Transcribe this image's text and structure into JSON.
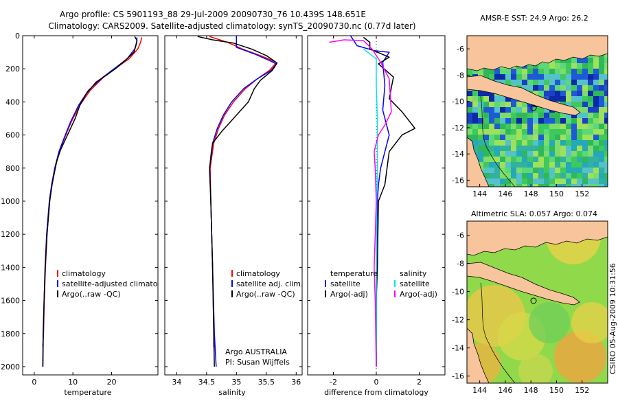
{
  "header": {
    "title_line1": "Argo profile: CS 5901193_88 29-Jul-2009 20090730_76 10.439S 148.651E",
    "title_line2": "Climatology: CARS2009. Satellite-adjusted climatology: synTS_20090730.nc (0.77d later)"
  },
  "colors": {
    "climatology": "#ff0000",
    "satellite": "#0000ff",
    "argo": "#000000",
    "sat_salinity": "#00e5ee",
    "argo_salinity_adj": "#ff00ff",
    "land": "#f7c49b"
  },
  "chart_data": [
    {
      "type": "line",
      "id": "temperature",
      "xlabel": "temperature",
      "ylabel": "",
      "xlim": [
        -3,
        32
      ],
      "ylim": [
        2050,
        0
      ],
      "xticks": [
        0,
        10,
        20
      ],
      "yticks": [
        0,
        200,
        400,
        600,
        800,
        1000,
        1200,
        1400,
        1600,
        1800,
        2000
      ],
      "legend": [
        "climatology",
        "satellite-adjusted climatology",
        "Argo(..raw -QC)"
      ],
      "series": [
        {
          "name": "climatology",
          "color": "#ff0000",
          "points": [
            [
              27.8,
              10
            ],
            [
              27.5,
              40
            ],
            [
              26.8,
              80
            ],
            [
              24.5,
              140
            ],
            [
              21.5,
              190
            ],
            [
              18.0,
              250
            ],
            [
              14.5,
              330
            ],
            [
              11.8,
              420
            ],
            [
              9.6,
              520
            ],
            [
              7.8,
              620
            ],
            [
              6.5,
              700
            ],
            [
              5.4,
              800
            ],
            [
              4.6,
              900
            ],
            [
              4.0,
              1000
            ],
            [
              3.3,
              1200
            ],
            [
              2.9,
              1400
            ],
            [
              2.6,
              1600
            ],
            [
              2.4,
              1800
            ],
            [
              2.2,
              1880
            ]
          ]
        },
        {
          "name": "satellite",
          "color": "#0000ff",
          "points": [
            [
              26.6,
              10
            ],
            [
              26.5,
              40
            ],
            [
              26.0,
              80
            ],
            [
              24.0,
              140
            ],
            [
              21.2,
              190
            ],
            [
              17.8,
              250
            ],
            [
              14.0,
              330
            ],
            [
              11.5,
              420
            ],
            [
              9.4,
              520
            ],
            [
              7.7,
              620
            ],
            [
              6.4,
              700
            ],
            [
              5.3,
              800
            ],
            [
              4.5,
              900
            ],
            [
              3.9,
              1000
            ],
            [
              3.2,
              1200
            ],
            [
              2.8,
              1400
            ],
            [
              2.55,
              1600
            ],
            [
              2.35,
              1800
            ],
            [
              2.25,
              2000
            ]
          ]
        },
        {
          "name": "Argo(..raw -QC)",
          "color": "#000000",
          "points": [
            [
              26.0,
              5
            ],
            [
              26.6,
              30
            ],
            [
              26.3,
              60
            ],
            [
              25.8,
              100
            ],
            [
              23.5,
              150
            ],
            [
              21.0,
              200
            ],
            [
              18.6,
              240
            ],
            [
              16.0,
              280
            ],
            [
              13.5,
              350
            ],
            [
              11.8,
              420
            ],
            [
              10.6,
              500
            ],
            [
              9.4,
              560
            ],
            [
              8.0,
              630
            ],
            [
              6.8,
              690
            ],
            [
              5.8,
              760
            ],
            [
              4.6,
              900
            ],
            [
              4.0,
              1000
            ],
            [
              3.3,
              1200
            ],
            [
              2.85,
              1400
            ],
            [
              2.55,
              1600
            ],
            [
              2.3,
              1800
            ],
            [
              2.2,
              2000
            ]
          ]
        }
      ]
    },
    {
      "type": "line",
      "id": "salinity",
      "xlabel": "salinity",
      "xlim": [
        33.8,
        36.1
      ],
      "ylim": [
        2050,
        0
      ],
      "xticks": [
        34,
        34.5,
        35,
        35.5,
        36
      ],
      "legend": [
        "climatology",
        "satellite adj. clim.",
        "Argo(..raw -QC)"
      ],
      "annotation": [
        "Argo AUSTRALIA",
        "PI: Susan Wijffels"
      ],
      "series": [
        {
          "name": "climatology",
          "color": "#ff0000",
          "points": [
            [
              34.55,
              5
            ],
            [
              34.85,
              40
            ],
            [
              35.1,
              80
            ],
            [
              35.4,
              120
            ],
            [
              35.6,
              150
            ],
            [
              35.65,
              170
            ],
            [
              35.55,
              210
            ],
            [
              35.35,
              260
            ],
            [
              35.15,
              320
            ],
            [
              34.95,
              400
            ],
            [
              34.8,
              480
            ],
            [
              34.7,
              560
            ],
            [
              34.62,
              650
            ],
            [
              34.58,
              750
            ],
            [
              34.56,
              800
            ],
            [
              34.57,
              1000
            ],
            [
              34.6,
              1400
            ],
            [
              34.62,
              1800
            ],
            [
              34.62,
              1880
            ]
          ]
        },
        {
          "name": "satellite",
          "color": "#0000ff",
          "points": [
            [
              35.0,
              5
            ],
            [
              35.0,
              70
            ],
            [
              35.3,
              110
            ],
            [
              35.55,
              150
            ],
            [
              35.67,
              170
            ],
            [
              35.58,
              210
            ],
            [
              35.35,
              260
            ],
            [
              35.12,
              320
            ],
            [
              34.92,
              400
            ],
            [
              34.78,
              480
            ],
            [
              34.68,
              560
            ],
            [
              34.6,
              650
            ],
            [
              34.57,
              750
            ],
            [
              34.55,
              800
            ],
            [
              34.57,
              1000
            ],
            [
              34.6,
              1400
            ],
            [
              34.63,
              1800
            ],
            [
              34.66,
              2000
            ]
          ]
        },
        {
          "name": "Argo(..raw -QC)",
          "color": "#000000",
          "points": [
            [
              34.35,
              5
            ],
            [
              34.6,
              25
            ],
            [
              34.95,
              45
            ],
            [
              35.25,
              80
            ],
            [
              35.5,
              120
            ],
            [
              35.68,
              165
            ],
            [
              35.6,
              210
            ],
            [
              35.4,
              270
            ],
            [
              35.3,
              320
            ],
            [
              35.2,
              400
            ],
            [
              35.0,
              480
            ],
            [
              34.85,
              540
            ],
            [
              34.75,
              580
            ],
            [
              34.6,
              650
            ],
            [
              34.58,
              700
            ],
            [
              34.55,
              800
            ],
            [
              34.57,
              1000
            ],
            [
              34.6,
              1400
            ],
            [
              34.62,
              1800
            ],
            [
              34.63,
              2000
            ]
          ]
        }
      ]
    },
    {
      "type": "line",
      "id": "difference",
      "xlabel": "difference from climatology",
      "xlim": [
        -3.2,
        3.2
      ],
      "ylim": [
        2050,
        0
      ],
      "xticks": [
        -2,
        0,
        2
      ],
      "legend_left_title": "temperature",
      "legend_left": [
        "satellite",
        "Argo(-adj)"
      ],
      "legend_right_title": "salinity",
      "legend_right": [
        "satellite",
        "Argo(-adj)"
      ],
      "series": [
        {
          "name": "temperature satellite",
          "color": "#0000ff",
          "points": [
            [
              -1.2,
              0
            ],
            [
              -0.9,
              60
            ],
            [
              -0.1,
              90
            ],
            [
              0.6,
              100
            ],
            [
              0.3,
              160
            ],
            [
              0.4,
              300
            ],
            [
              0.3,
              450
            ],
            [
              0.6,
              600
            ],
            [
              0.2,
              800
            ],
            [
              0.1,
              900
            ],
            [
              0.05,
              1000
            ],
            [
              0.0,
              1400
            ],
            [
              0.0,
              1600
            ],
            [
              0.0,
              2000
            ]
          ]
        },
        {
          "name": "temperature Argo(-adj)",
          "color": "#000000",
          "points": [
            [
              -0.6,
              10
            ],
            [
              -0.3,
              40
            ],
            [
              -0.3,
              80
            ],
            [
              0.6,
              130
            ],
            [
              0.1,
              170
            ],
            [
              0.8,
              250
            ],
            [
              0.6,
              380
            ],
            [
              1.2,
              460
            ],
            [
              1.8,
              560
            ],
            [
              1.2,
              600
            ],
            [
              0.6,
              700
            ],
            [
              0.4,
              900
            ],
            [
              0.1,
              1000
            ],
            [
              0.05,
              1400
            ],
            [
              0.0,
              1600
            ],
            [
              0.0,
              2000
            ]
          ]
        },
        {
          "name": "salinity satellite",
          "color": "#00e5ee",
          "points": [
            [
              -0.6,
              80
            ],
            [
              0.0,
              140
            ],
            [
              0.0,
              300
            ],
            [
              0.05,
              500
            ],
            [
              0.05,
              800
            ],
            [
              0.02,
              1000
            ],
            [
              0.0,
              1400
            ],
            [
              0.0,
              2000
            ]
          ]
        },
        {
          "name": "salinity Argo(-adj)",
          "color": "#ff00ff",
          "points": [
            [
              -2.2,
              40
            ],
            [
              -1.5,
              25
            ],
            [
              -0.6,
              30
            ],
            [
              -0.2,
              80
            ],
            [
              0.2,
              160
            ],
            [
              0.6,
              260
            ],
            [
              0.7,
              460
            ],
            [
              0.4,
              540
            ],
            [
              0.1,
              600
            ],
            [
              -0.1,
              700
            ],
            [
              -0.05,
              800
            ],
            [
              0.0,
              1000
            ],
            [
              -0.1,
              1400
            ],
            [
              -0.05,
              1600
            ],
            [
              0.0,
              2000
            ]
          ]
        }
      ]
    },
    {
      "type": "heatmap",
      "id": "sst_map",
      "title": "AMSR-E SST: 24.9 Argo: 26.2",
      "xlim": [
        143,
        154
      ],
      "ylim": [
        -16.5,
        -5
      ],
      "xticks": [
        144,
        146,
        148,
        150,
        152
      ],
      "yticks": [
        -6,
        -8,
        -10,
        -12,
        -14,
        -16
      ],
      "argo_position": [
        148.651,
        -10.439
      ]
    },
    {
      "type": "heatmap",
      "id": "sla_map",
      "title": "Altimetric SLA: 0.057 Argo: 0.074",
      "xlim": [
        143,
        154
      ],
      "ylim": [
        -16.5,
        -5
      ],
      "xticks": [
        144,
        146,
        148,
        150,
        152
      ],
      "yticks": [
        -6,
        -8,
        -10,
        -12,
        -14,
        -16
      ],
      "argo_position": [
        148.651,
        -10.439
      ]
    }
  ],
  "footer": {
    "credit": "CSIRO 05-Aug-2009 10:31:56"
  }
}
